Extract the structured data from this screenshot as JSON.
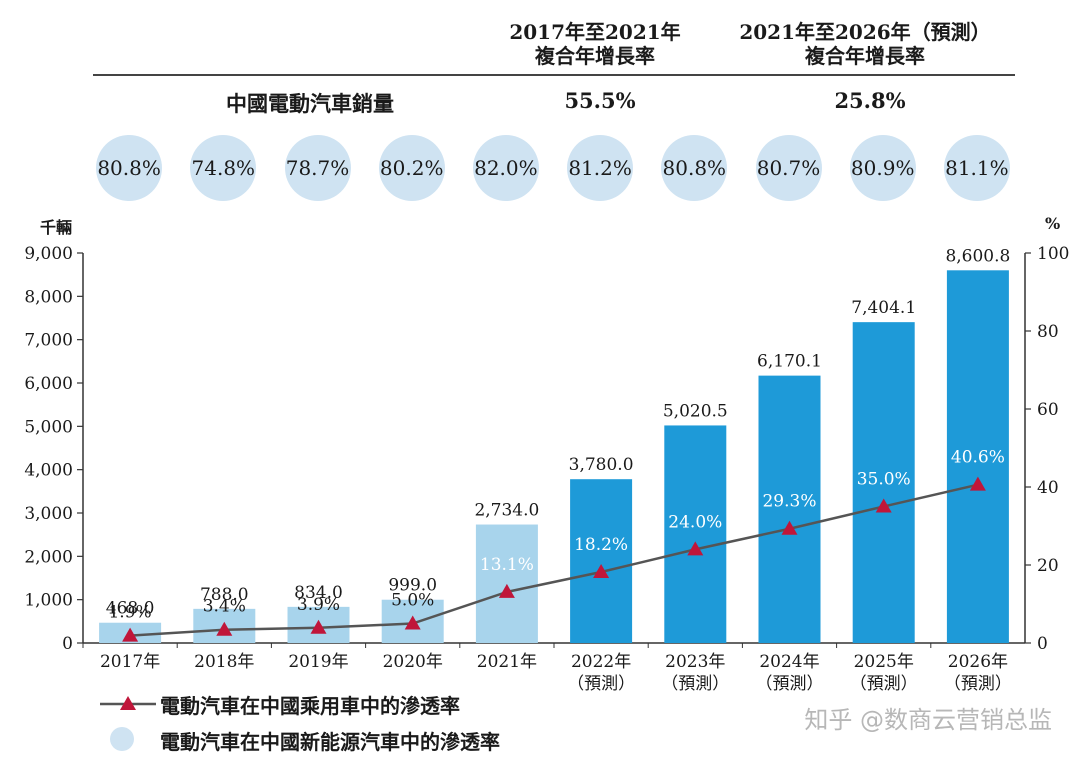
{
  "header": {
    "col1_line1": "2017年至2021年",
    "col1_line2": "複合年增長率",
    "col2_line1": "2021年至2026年（預測）",
    "col2_line2": "複合年增長率",
    "row_label": "中國電動汽車銷量",
    "row_val1": "55.5%",
    "row_val2": "25.8%"
  },
  "bubbles": [
    "80.8%",
    "74.8%",
    "78.7%",
    "80.2%",
    "82.0%",
    "81.2%",
    "80.8%",
    "80.7%",
    "80.9%",
    "81.1%"
  ],
  "units": {
    "left": "千輛",
    "right": "%"
  },
  "legend": {
    "line_label": "電動汽車在中國乘用車中的滲透率",
    "bubble_label": "電動汽車在中國新能源汽車中的滲透率"
  },
  "watermark": "知乎 @数商云营销总监",
  "colors": {
    "light_bar": "#a8d4ec",
    "dark_bar": "#1e9ad8",
    "line": "#555555",
    "marker": "#c0163a",
    "bubble": "#cfe3f2"
  },
  "chart_data": {
    "type": "bar",
    "categories": [
      "2017年",
      "2018年",
      "2019年",
      "2020年",
      "2021年",
      "2022年",
      "2023年",
      "2024年",
      "2025年",
      "2026年"
    ],
    "category_sublabels": [
      "",
      "",
      "",
      "",
      "",
      "（預測）",
      "（預測）",
      "（預測）",
      "（預測）",
      "（預測）"
    ],
    "series": [
      {
        "name": "中國電動汽車銷量",
        "axis": "left",
        "values": [
          468.0,
          788.0,
          834.0,
          999.0,
          2734.0,
          3780.0,
          5020.5,
          6170.1,
          7404.1,
          8600.8
        ],
        "labels": [
          "468.0",
          "788.0",
          "834.0",
          "999.0",
          "2,734.0",
          "3,780.0",
          "5,020.5",
          "6,170.1",
          "7,404.1",
          "8,600.8"
        ]
      },
      {
        "name": "電動汽車在中國乘用車中的滲透率",
        "axis": "right",
        "type": "line",
        "values": [
          1.9,
          3.4,
          3.9,
          5.0,
          13.1,
          18.2,
          24.0,
          29.3,
          35.0,
          40.6
        ],
        "labels": [
          "1.9%",
          "3.4%",
          "3.9%",
          "5.0%",
          "13.1%",
          "18.2%",
          "24.0%",
          "29.3%",
          "35.0%",
          "40.6%"
        ]
      }
    ],
    "ylim_left": [
      0,
      9000
    ],
    "yticks_left": [
      "0",
      "1,000",
      "2,000",
      "3,000",
      "4,000",
      "5,000",
      "6,000",
      "7,000",
      "8,000",
      "9,000"
    ],
    "ylim_right": [
      0,
      100
    ],
    "yticks_right": [
      "0",
      "20",
      "40",
      "60",
      "80",
      "100"
    ],
    "ylabel_left": "千輛",
    "ylabel_right": "%"
  }
}
